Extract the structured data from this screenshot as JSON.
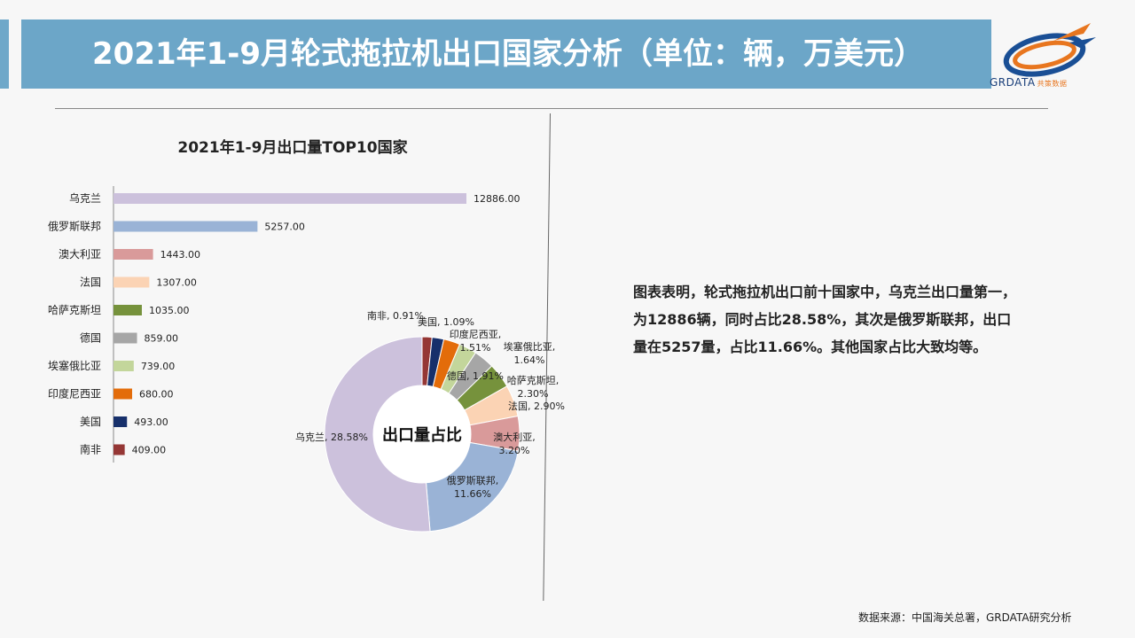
{
  "header": {
    "title": "2021年1-9月轮式拖拉机出口国家分析（单位：辆，万美元）",
    "logo_text": "GRDATA",
    "logo_sub": "共策数据"
  },
  "chart_title": "2021年1-9月出口量TOP10国家",
  "chart_data": [
    {
      "type": "bar",
      "orientation": "horizontal",
      "title": "2021年1-9月出口量TOP10国家",
      "categories": [
        "乌克兰",
        "俄罗斯联邦",
        "澳大利亚",
        "法国",
        "哈萨克斯坦",
        "德国",
        "埃塞俄比亚",
        "印度尼西亚",
        "美国",
        "南非"
      ],
      "values": [
        12886,
        5257,
        1443,
        1307,
        1035,
        859,
        739,
        680,
        493,
        409
      ],
      "value_labels": [
        "12886.00",
        "5257.00",
        "1443.00",
        "1307.00",
        "1035.00",
        "859.00",
        "739.00",
        "680.00",
        "493.00",
        "409.00"
      ],
      "colors": [
        "#ccc1dc",
        "#9ab3d6",
        "#d99a9a",
        "#fbd3b4",
        "#76923c",
        "#a6a6a6",
        "#c3d69b",
        "#e36c0a",
        "#17306b",
        "#953735"
      ],
      "grid": false,
      "legend": "none"
    },
    {
      "type": "pie",
      "variant": "donut",
      "center_label": "出口量占比",
      "slices": [
        {
          "label": "南非",
          "percent": 0.91,
          "text": "南非, 0.91%",
          "color": "#953735"
        },
        {
          "label": "美国",
          "percent": 1.09,
          "text": "美国, 1.09%",
          "color": "#17306b"
        },
        {
          "label": "印度尼西亚",
          "percent": 1.51,
          "text": "印度尼西亚,\n1.51%",
          "color": "#e36c0a"
        },
        {
          "label": "埃塞俄比亚",
          "percent": 1.64,
          "text": "埃塞俄比亚,\n1.64%",
          "color": "#c3d69b"
        },
        {
          "label": "德国",
          "percent": 1.91,
          "text": "德国, 1.91%",
          "color": "#a6a6a6"
        },
        {
          "label": "哈萨克斯坦",
          "percent": 2.3,
          "text": "哈萨克斯坦,\n2.30%",
          "color": "#76923c"
        },
        {
          "label": "法国",
          "percent": 2.9,
          "text": "法国, 2.90%",
          "color": "#fbd3b4"
        },
        {
          "label": "澳大利亚",
          "percent": 3.2,
          "text": "澳大利亚,\n3.20%",
          "color": "#d99a9a"
        },
        {
          "label": "俄罗斯联邦",
          "percent": 11.66,
          "text": "俄罗斯联邦,\n11.66%",
          "color": "#9ab3d6"
        },
        {
          "label": "乌克兰",
          "percent": 28.58,
          "text": "乌克兰, 28.58%",
          "color": "#ccc1dc"
        }
      ]
    }
  ],
  "description": "图表表明，轮式拖拉机出口前十国家中，乌克兰出口量第一，为12886辆，同时占比28.58%，其次是俄罗斯联邦，出口量在5257量，占比11.66%。其他国家占比大致均等。",
  "source": "数据来源：中国海关总署，GRDATA研究分析"
}
